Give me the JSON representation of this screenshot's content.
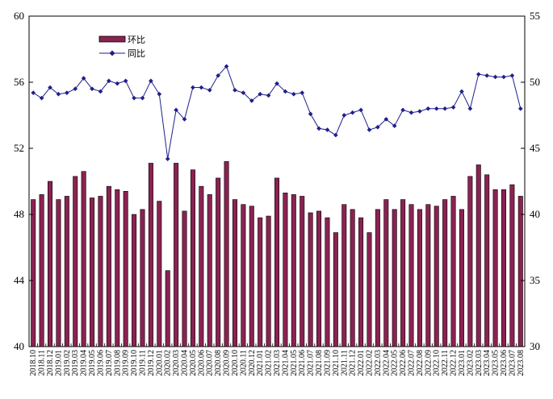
{
  "chart_data": {
    "type": "bar+line",
    "categories": [
      "2018.10",
      "2018.11",
      "2018.12",
      "2019.01",
      "2019.02",
      "2019.03",
      "2019.04",
      "2019.05",
      "2019.06",
      "2019.07",
      "2019.08",
      "2019.09",
      "2019.10",
      "2019.11",
      "2019.12",
      "2020.01",
      "2020.02",
      "2020.03",
      "2020.04",
      "2020.05",
      "2020.06",
      "2020.07",
      "2020.08",
      "2020.09",
      "2020.10",
      "2020.11",
      "2020.12",
      "2021.01",
      "2021.02",
      "2021.03",
      "2021.04",
      "2021.05",
      "2021.06",
      "2021.07",
      "2021.08",
      "2021.09",
      "2021.10",
      "2021.11",
      "2021.12",
      "2022.01",
      "2022.02",
      "2022.03",
      "2022.04",
      "2022.05",
      "2022.06",
      "2022.07",
      "2022.08",
      "2022.09",
      "2022.10",
      "2022.11",
      "2022.12",
      "2023.01",
      "2023.02",
      "2023.03",
      "2023.04",
      "2023.05",
      "2023.06",
      "2023.07",
      "2023.08"
    ],
    "series": [
      {
        "name": "环比",
        "type": "bar",
        "axis": "left",
        "color": "#8B2252",
        "values": [
          48.9,
          49.2,
          50.0,
          48.9,
          49.1,
          50.3,
          50.6,
          49.0,
          49.1,
          49.7,
          49.5,
          49.4,
          48.0,
          48.3,
          51.1,
          48.8,
          44.6,
          51.1,
          48.2,
          50.7,
          49.7,
          49.2,
          50.2,
          51.2,
          48.9,
          48.6,
          48.5,
          47.8,
          47.9,
          50.2,
          49.3,
          49.2,
          49.1,
          48.1,
          48.2,
          47.8,
          46.9,
          48.6,
          48.3,
          47.8,
          46.9,
          48.3,
          48.9,
          48.3,
          48.9,
          48.6,
          48.3,
          48.6,
          48.5,
          48.9,
          49.1,
          48.3,
          50.3,
          51.0,
          50.4,
          49.5,
          49.5,
          49.8,
          49.1
        ]
      },
      {
        "name": "同比",
        "type": "line",
        "axis": "right",
        "color": "#1F1F8C",
        "values": [
          49.2,
          48.8,
          49.6,
          49.1,
          49.2,
          49.5,
          50.3,
          49.5,
          49.3,
          50.1,
          49.9,
          50.1,
          48.8,
          48.8,
          50.1,
          49.1,
          44.2,
          47.9,
          47.2,
          49.6,
          49.6,
          49.4,
          50.5,
          51.2,
          49.4,
          49.2,
          48.6,
          49.1,
          49.0,
          49.9,
          49.3,
          49.1,
          49.2,
          47.6,
          46.5,
          46.4,
          46.0,
          47.5,
          47.7,
          47.9,
          46.4,
          46.6,
          47.2,
          46.7,
          47.9,
          47.7,
          47.8,
          48.0,
          48.0,
          48.0,
          48.1,
          49.3,
          48.0,
          50.6,
          50.5,
          50.4,
          50.4,
          50.5,
          48.0
        ]
      }
    ],
    "ylim_left": [
      40,
      60
    ],
    "yticks_left": [
      "40",
      "44",
      "48",
      "52",
      "56",
      "60"
    ],
    "ylim_right": [
      30,
      55
    ],
    "yticks_right": [
      "30",
      "35",
      "40",
      "45",
      "50",
      "55"
    ],
    "legend": {
      "position": "top-left",
      "entries": [
        "环比",
        "同比"
      ]
    },
    "grid": false
  }
}
